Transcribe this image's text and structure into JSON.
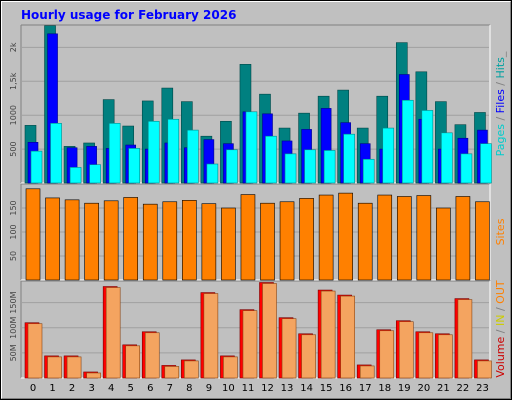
{
  "title": "Hourly usage for February 2026",
  "colors": {
    "pages": "#008080",
    "files": "#0000ff",
    "hits": "#00ffff",
    "sites": "#ff8000",
    "in": "#ffff00",
    "volume": "#ff0000",
    "separator": "#808080"
  },
  "legend": {
    "top": [
      {
        "text": "Pages",
        "color": "#00cccc"
      },
      {
        "text": " / ",
        "color": "#808080"
      },
      {
        "text": "Files",
        "color": "#0000ff"
      },
      {
        "text": " / ",
        "color": "#808080"
      },
      {
        "text": "Hits",
        "color": "#00a0a0"
      },
      {
        "text": "_",
        "color": "#808080"
      }
    ],
    "middle": [
      {
        "text": "Sites",
        "color": "#ff8000"
      }
    ],
    "bottom": [
      {
        "text": "Volume",
        "color": "#cc0000"
      },
      {
        "text": " / ",
        "color": "#808080"
      },
      {
        "text": "IN",
        "color": "#cccc00"
      },
      {
        "text": " / ",
        "color": "#808080"
      },
      {
        "text": "OUT",
        "color": "#ff8000"
      }
    ]
  },
  "chart_data": [
    {
      "type": "bar",
      "panel": "hits-files-pages",
      "categories": [
        "0",
        "1",
        "2",
        "3",
        "4",
        "5",
        "6",
        "7",
        "8",
        "9",
        "10",
        "11",
        "12",
        "13",
        "14",
        "15",
        "16",
        "17",
        "18",
        "19",
        "20",
        "21",
        "22",
        "23"
      ],
      "y_tick_labels": [
        "500",
        "1000",
        "1,5k",
        "2k"
      ],
      "ylim": [
        0,
        2330
      ],
      "series": [
        {
          "name": "Pages",
          "values": [
            850,
            2320,
            540,
            590,
            1230,
            840,
            1210,
            1400,
            1200,
            690,
            910,
            1750,
            1310,
            810,
            1030,
            1280,
            1370,
            810,
            1280,
            2070,
            1640,
            1200,
            860,
            1040
          ]
        },
        {
          "name": "Files",
          "values": [
            600,
            2200,
            520,
            540,
            510,
            560,
            500,
            590,
            520,
            640,
            580,
            1050,
            1020,
            620,
            790,
            1100,
            890,
            580,
            500,
            1600,
            940,
            500,
            660,
            780
          ]
        },
        {
          "name": "Hits",
          "values": [
            470,
            880,
            230,
            270,
            880,
            510,
            910,
            940,
            780,
            280,
            490,
            1050,
            690,
            430,
            490,
            480,
            720,
            350,
            810,
            1220,
            1070,
            740,
            430,
            580
          ]
        }
      ]
    },
    {
      "type": "bar",
      "panel": "sites",
      "categories": [
        "0",
        "1",
        "2",
        "3",
        "4",
        "5",
        "6",
        "7",
        "8",
        "9",
        "10",
        "11",
        "12",
        "13",
        "14",
        "15",
        "16",
        "17",
        "18",
        "19",
        "20",
        "21",
        "22",
        "23"
      ],
      "y_tick_labels": [
        "50",
        "100",
        "150"
      ],
      "ylim": [
        0,
        200
      ],
      "series": [
        {
          "name": "Sites",
          "values": [
            190,
            171,
            167,
            160,
            165,
            172,
            158,
            163,
            166,
            159,
            150,
            178,
            160,
            163,
            170,
            177,
            181,
            160,
            177,
            174,
            176,
            150,
            174,
            163
          ]
        }
      ]
    },
    {
      "type": "bar",
      "panel": "volume",
      "categories": [
        "0",
        "1",
        "2",
        "3",
        "4",
        "5",
        "6",
        "7",
        "8",
        "9",
        "10",
        "11",
        "12",
        "13",
        "14",
        "15",
        "16",
        "17",
        "18",
        "19",
        "20",
        "21",
        "22",
        "23"
      ],
      "y_tick_labels": [
        "50M",
        "100M",
        "150M"
      ],
      "ylim": [
        0,
        193
      ],
      "series": [
        {
          "name": "Volume",
          "values": [
            110,
            44,
            44,
            12,
            182,
            66,
            92,
            25,
            36,
            170,
            44,
            136,
            190,
            120,
            88,
            175,
            165,
            26,
            96,
            114,
            92,
            88,
            158,
            36
          ]
        }
      ]
    }
  ]
}
